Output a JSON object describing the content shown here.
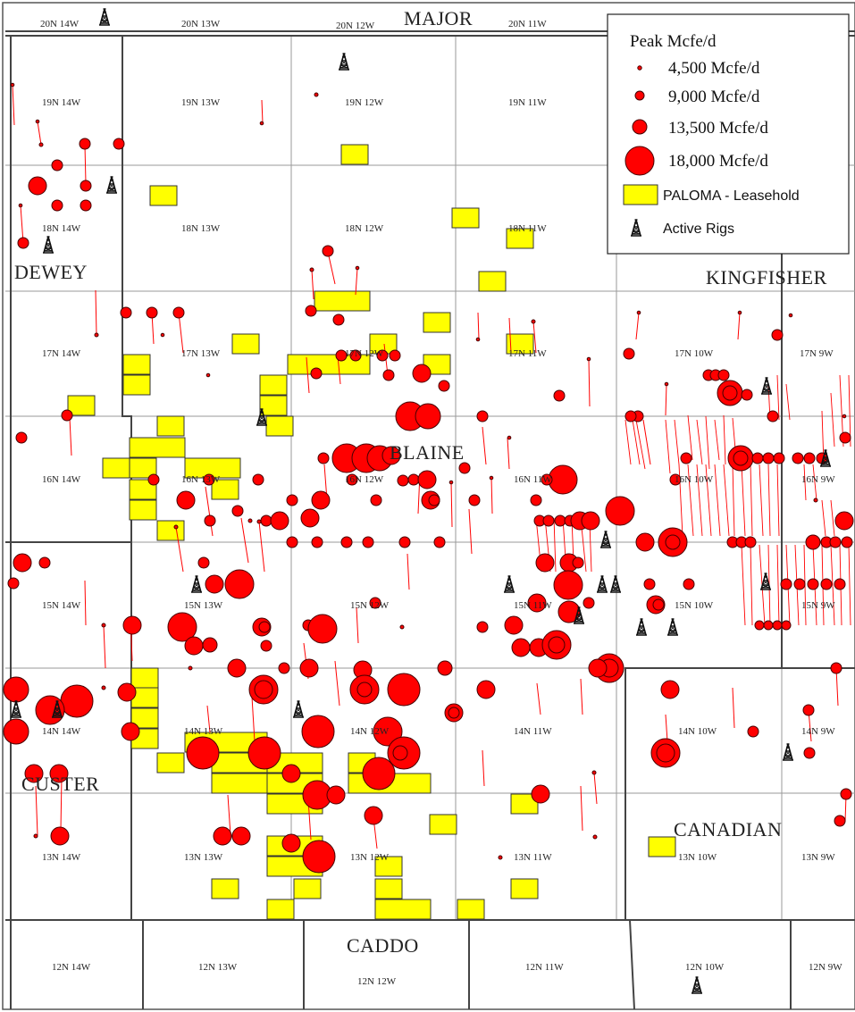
{
  "county_labels": {
    "major": "MAJOR",
    "dewey": "DEWEY",
    "kingfisher": "KINGFISHER",
    "blaine": "BLAINE",
    "custer": "CUSTER",
    "canadian": "CANADIAN",
    "caddo": "CADDO"
  },
  "township_labels": [
    "20N 14W",
    "20N 13W",
    "20N 12W",
    "20N 11W",
    "19N 14W",
    "19N 13W",
    "19N 12W",
    "19N 11W",
    "18N 14W",
    "18N 13W",
    "18N 12W",
    "18N 11W",
    "17N 14W",
    "17N 13W",
    "17N 12W",
    "17N 11W",
    "17N 10W",
    "17N 9W",
    "16N 14W",
    "16N 13W",
    "16N 12W",
    "16N 11W",
    "16N 10W",
    "16N 9W",
    "15N 14W",
    "15N 13W",
    "15N 12W",
    "15N 11W",
    "15N 10W",
    "15N 9W",
    "14N 14W",
    "14N 13W",
    "14N 12W",
    "14N 11W",
    "14N 10W",
    "14N 9W",
    "13N 14W",
    "13N 13W",
    "13N 12W",
    "13N 11W",
    "13N 10W",
    "13N 9W",
    "12N 14W",
    "12N 13W",
    "12N 12W",
    "12N 11W",
    "12N 10W",
    "12N 9W"
  ],
  "legend": {
    "title": "Peak Mcfe/d",
    "sizes": [
      "4,500 Mcfe/d",
      "9,000 Mcfe/d",
      "13,500 Mcfe/d",
      "18,000 Mcfe/d"
    ],
    "leasehold": "PALOMA - Leasehold",
    "rigs": "Active Rigs"
  },
  "colors": {
    "well": "#ff0000",
    "leasehold": "#ffff00",
    "grid": "#9a9a9a",
    "county_border": "#444444"
  },
  "icons": [
    "oil-rig-icon"
  ]
}
